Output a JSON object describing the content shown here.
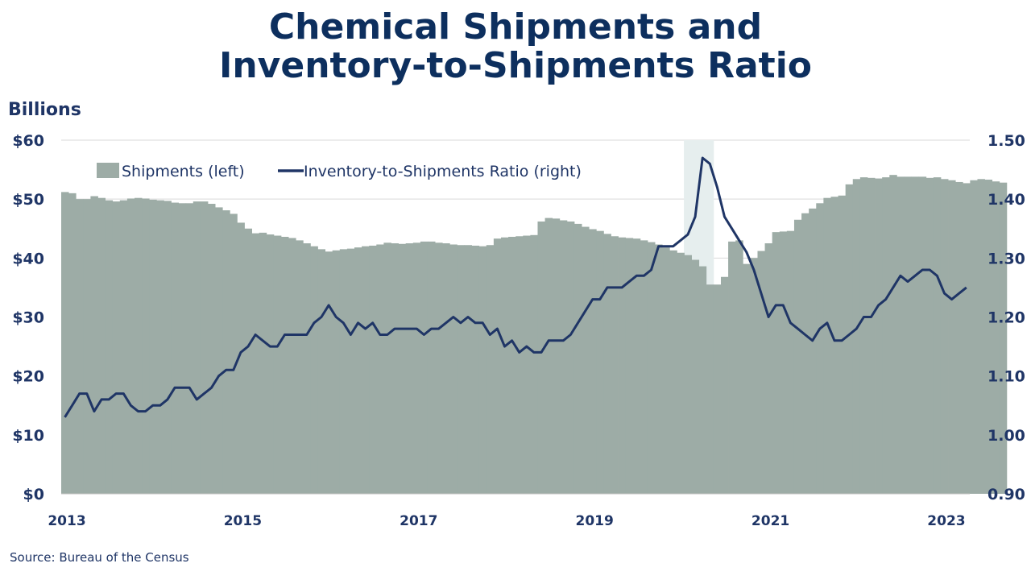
{
  "title_line1": "Chemical Shipments and",
  "title_line2": "Inventory-to-Shipments Ratio",
  "y_unit_label": "Billions",
  "source": "Source:  Bureau of the Census",
  "colors": {
    "title": "#0d2f5e",
    "text": "#1f3566",
    "area": "#9dacA6",
    "line": "#1f3566",
    "recession": "#e6eeee",
    "grid": "#d9d9d9"
  },
  "chart_data": {
    "type": "bar+line",
    "x_tick_labels": [
      "2013",
      "2015",
      "2017",
      "2019",
      "2021",
      "2023"
    ],
    "x_ticks_years": [
      2013,
      2015,
      2017,
      2019,
      2021,
      2023
    ],
    "x_range": [
      2013.0,
      2023.33
    ],
    "left_axis": {
      "range": [
        0,
        60
      ],
      "ticks": [
        "$0",
        "$10",
        "$20",
        "$30",
        "$40",
        "$50",
        "$60"
      ],
      "tick_values": [
        0,
        10,
        20,
        30,
        40,
        50,
        60
      ]
    },
    "right_axis": {
      "range": [
        0.9,
        1.5
      ],
      "ticks": [
        "0.90",
        "1.00",
        "1.10",
        "1.20",
        "1.30",
        "1.40",
        "1.50"
      ],
      "tick_values": [
        0.9,
        1.0,
        1.1,
        1.2,
        1.3,
        1.4,
        1.5
      ]
    },
    "legend": {
      "placement": "top-left",
      "entries": [
        "Shipments (left)",
        "Inventory-to-Shipments Ratio (right)"
      ]
    },
    "recession_shading": {
      "start": 2020.08,
      "end": 2020.42
    },
    "grid": "horizontal",
    "series": [
      {
        "name": "Shipments (left)",
        "type": "bar",
        "start": 2013.0,
        "step_months": 1,
        "values": [
          51.2,
          51.0,
          50.0,
          50.0,
          50.5,
          50.2,
          49.8,
          49.6,
          49.8,
          50.1,
          50.2,
          50.1,
          49.9,
          49.8,
          49.7,
          49.4,
          49.3,
          49.3,
          49.6,
          49.6,
          49.2,
          48.6,
          48.1,
          47.5,
          46.0,
          45.0,
          44.2,
          44.3,
          44.0,
          43.8,
          43.6,
          43.4,
          43.0,
          42.5,
          42.0,
          41.5,
          41.1,
          41.3,
          41.5,
          41.6,
          41.8,
          42.0,
          42.1,
          42.3,
          42.6,
          42.5,
          42.4,
          42.5,
          42.6,
          42.8,
          42.8,
          42.6,
          42.5,
          42.3,
          42.2,
          42.2,
          42.1,
          42.0,
          42.2,
          43.3,
          43.5,
          43.6,
          43.7,
          43.8,
          43.9,
          46.2,
          46.8,
          46.7,
          46.4,
          46.2,
          45.8,
          45.3,
          44.9,
          44.6,
          44.1,
          43.7,
          43.5,
          43.4,
          43.3,
          43.0,
          42.7,
          42.3,
          41.8,
          41.3,
          40.9,
          40.5,
          39.7,
          38.6,
          35.5,
          35.5,
          36.8,
          42.8,
          43.0,
          39.0,
          40.0,
          41.2,
          42.5,
          44.4,
          44.5,
          44.6,
          46.5,
          47.6,
          48.4,
          49.3,
          50.2,
          50.4,
          50.6,
          52.5,
          53.4,
          53.7,
          53.6,
          53.5,
          53.7,
          54.1,
          53.8,
          53.8,
          53.8,
          53.8,
          53.6,
          53.7,
          53.4,
          53.2,
          52.9,
          52.7,
          53.2,
          53.4,
          53.3,
          53.0,
          52.8
        ]
      },
      {
        "name": "Inventory-to-Shipments Ratio (right)",
        "type": "line",
        "start": 2013.0,
        "step_months": 1,
        "values": [
          1.03,
          1.05,
          1.07,
          1.07,
          1.04,
          1.06,
          1.06,
          1.07,
          1.07,
          1.05,
          1.04,
          1.04,
          1.05,
          1.05,
          1.06,
          1.08,
          1.08,
          1.08,
          1.06,
          1.07,
          1.08,
          1.1,
          1.11,
          1.11,
          1.14,
          1.15,
          1.17,
          1.16,
          1.15,
          1.15,
          1.17,
          1.17,
          1.17,
          1.17,
          1.19,
          1.2,
          1.22,
          1.2,
          1.19,
          1.17,
          1.19,
          1.18,
          1.19,
          1.17,
          1.17,
          1.18,
          1.18,
          1.18,
          1.18,
          1.17,
          1.18,
          1.18,
          1.19,
          1.2,
          1.19,
          1.2,
          1.19,
          1.19,
          1.17,
          1.18,
          1.15,
          1.16,
          1.14,
          1.15,
          1.14,
          1.14,
          1.16,
          1.16,
          1.16,
          1.17,
          1.19,
          1.21,
          1.23,
          1.23,
          1.25,
          1.25,
          1.25,
          1.26,
          1.27,
          1.27,
          1.28,
          1.32,
          1.32,
          1.32,
          1.33,
          1.34,
          1.37,
          1.47,
          1.46,
          1.42,
          1.37,
          1.35,
          1.33,
          1.31,
          1.28,
          1.24,
          1.2,
          1.22,
          1.22,
          1.19,
          1.18,
          1.17,
          1.16,
          1.18,
          1.19,
          1.16,
          1.16,
          1.17,
          1.18,
          1.2,
          1.2,
          1.22,
          1.23,
          1.25,
          1.27,
          1.26,
          1.27,
          1.28,
          1.28,
          1.27,
          1.24,
          1.23,
          1.24,
          1.25
        ]
      }
    ]
  }
}
